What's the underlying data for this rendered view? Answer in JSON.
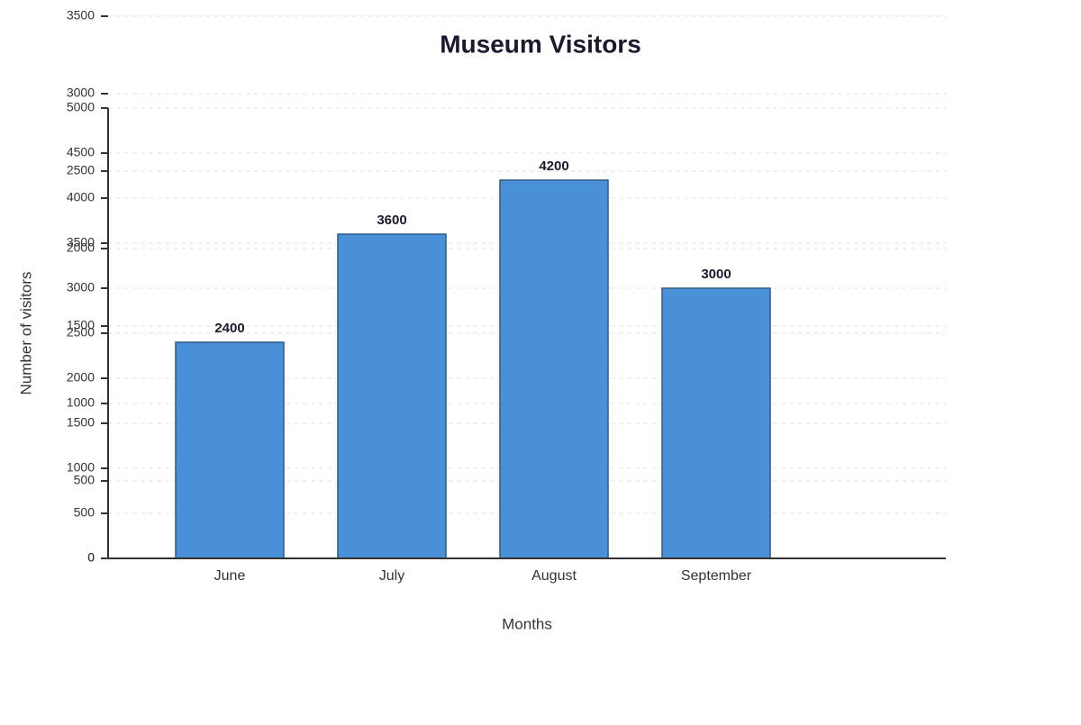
{
  "chart_data": {
    "type": "bar",
    "title": "Museum Visitors",
    "x_label": "Months",
    "y_label": "Number of visitors",
    "categories": [
      "June",
      "July",
      "August",
      "September"
    ],
    "values": [
      2400,
      3600,
      4200,
      3000
    ],
    "color": "#4a90d9",
    "ylim": [
      0,
      5000
    ],
    "yticks": [
      0,
      500,
      1000,
      1500,
      2000,
      2500,
      3000,
      3500,
      4000,
      4500,
      5000
    ],
    "y2lim": [
      0,
      3500
    ],
    "y2ticks": [
      0,
      500,
      1000,
      1500,
      2000,
      2500,
      3000,
      3500
    ],
    "grid": true
  }
}
